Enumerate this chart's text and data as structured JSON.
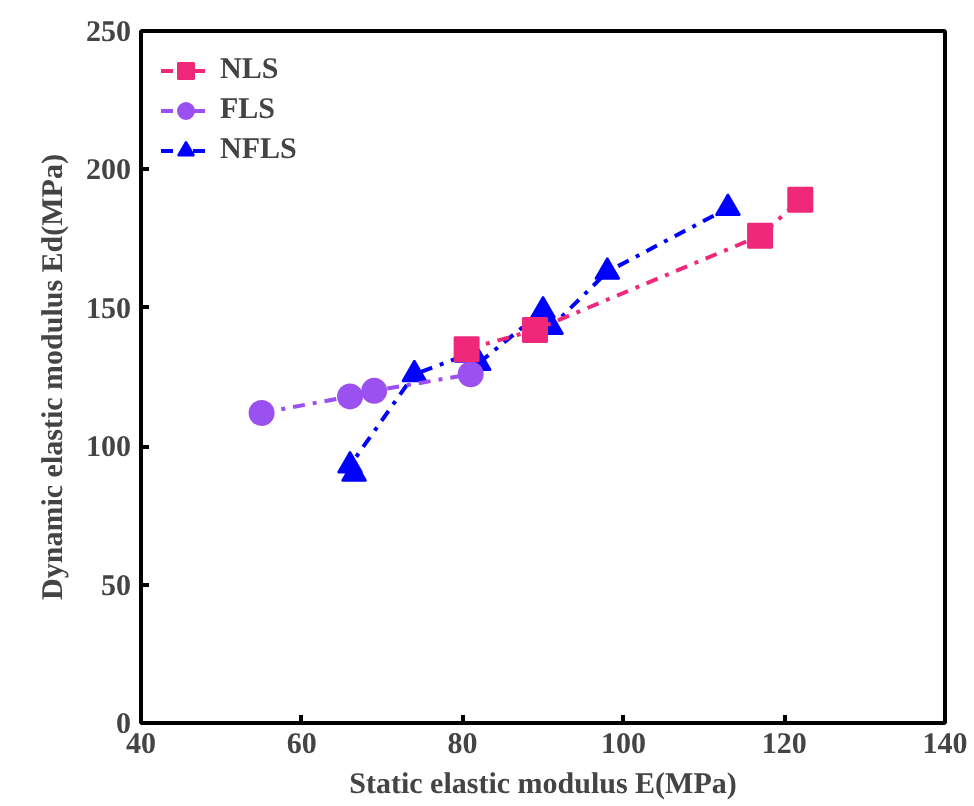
{
  "chart_data": {
    "type": "line",
    "xlabel": "Static elastic modulus E(MPa)",
    "ylabel": "Dynamic elastic modulus Ed(MPa)",
    "xlim": [
      40,
      140
    ],
    "xticks": [
      40,
      60,
      80,
      100,
      120,
      140
    ],
    "ylim": [
      0,
      250
    ],
    "yticks": [
      0,
      50,
      100,
      150,
      200,
      250
    ],
    "grid": false,
    "legend": "top left",
    "line_style": "dashdot",
    "series": [
      {
        "name": "NLS",
        "color": "#f0287a",
        "marker": "square",
        "x": [
          80.5,
          89,
          117,
          122
        ],
        "values": [
          135,
          142,
          176,
          189
        ]
      },
      {
        "name": "FLS",
        "color": "#9b50f0",
        "marker": "circle",
        "x": [
          55,
          66,
          69,
          81
        ],
        "values": [
          112,
          118,
          120,
          126
        ]
      },
      {
        "name": "NFLS",
        "color": "#0000ff",
        "marker": "triangle",
        "x": [
          66.5,
          66,
          74,
          80.5,
          82,
          90,
          91,
          98,
          113
        ],
        "values": [
          90,
          93,
          126,
          133,
          130,
          149,
          143,
          163,
          186
        ]
      }
    ]
  }
}
